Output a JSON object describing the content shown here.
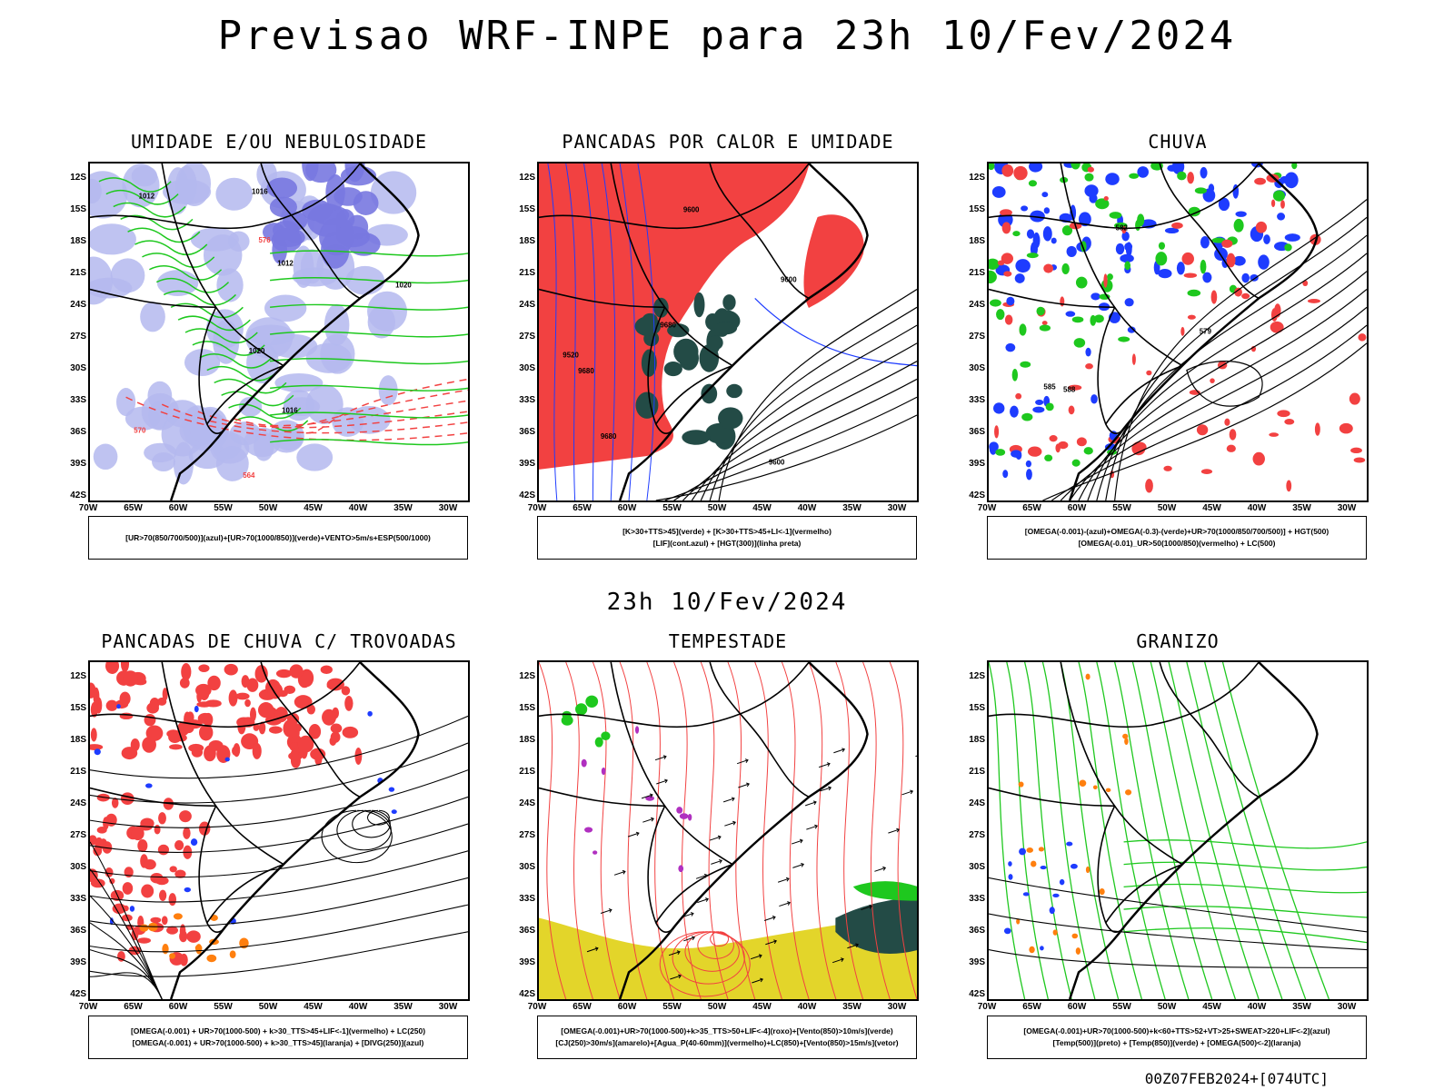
{
  "main_title": "Previsao WRF-INPE  para 23h 10/Fev/2024",
  "mid_title": "23h 10/Fev/2024",
  "footer": "00Z07FEB2024+[074UTC]",
  "lat_labels": [
    "12S",
    "15S",
    "18S",
    "21S",
    "24S",
    "27S",
    "30S",
    "33S",
    "36S",
    "39S",
    "42S"
  ],
  "lon_labels": [
    "70W",
    "65W",
    "60W",
    "55W",
    "50W",
    "45W",
    "40W",
    "35W",
    "30W"
  ],
  "colors": {
    "red": "#f24141",
    "green": "#1ec81e",
    "blue": "#1e3cff",
    "lightblue": "#b4b8ee",
    "purple": "#7878e0",
    "orange": "#ff7f0e",
    "yellow": "#e3d52a",
    "darkgreen": "#234b46"
  },
  "panels": [
    {
      "title": "UMIDADE E/OU NEBULOSIDADE",
      "legend": [
        "[UR>70(850/700/500)](azul)+[UR>70(1000/850)](verde)+VENTO>5m/s+ESP(500/1000)"
      ],
      "contour_labels": [
        "1012",
        "1012",
        "1016",
        "1016",
        "1020",
        "1020",
        "570",
        "576",
        "564"
      ]
    },
    {
      "title": "PANCADAS POR CALOR E UMIDADE",
      "legend": [
        "[K>30+TTS>45](verde) + [K>30+TTS>45+LI<-1](vermelho)",
        "[LIF](cont.azul) + [HGT(300)](linha preta)"
      ],
      "contour_labels": [
        "9680",
        "9680",
        "9600",
        "9680",
        "9600",
        "9520",
        "9600"
      ]
    },
    {
      "title": "CHUVA",
      "legend": [
        "[OMEGA(-0.001)-(azul)+OMEGA(-0.3)-(verde)+UR>70(1000/850/700/500)] + HGT(500)",
        "[OMEGA(-0.01)_UR>50(1000/850)(vermelho) + LC(500)"
      ],
      "contour_labels": [
        "588",
        "585",
        "582",
        "579"
      ]
    },
    {
      "title": "PANCADAS DE CHUVA C/ TROVOADAS",
      "legend": [
        "[OMEGA(-0.001) + UR>70(1000-500) + k>30_TTS>45+LIF<-1](vermelho) + LC(250)",
        "[OMEGA(-0.001) + UR>70(1000-500) + k>30_TTS>45](laranja) + [DIVG(250)](azul)"
      ],
      "contour_labels": []
    },
    {
      "title": "TEMPESTADE",
      "legend": [
        "[OMEGA(-0.001)+UR>70(1000-500)+k>35_TTS>50+LIF<-4](roxo)+[Vento(850)>10m/s](verde)",
        "[CJ(250)>30m/s](amarelo)+[Agua_P(40-60mm)](vermelho)+LC(850)+[Vento(850)>15m/s](vetor)"
      ],
      "contour_labels": []
    },
    {
      "title": "GRANIZO",
      "legend": [
        "[OMEGA(-0.001)+UR>70(1000-500)+k<60+TTS>52+VT>25+SWEAT>220+LIF<-2](azul)",
        "[Temp(500)](preto) + [Temp(850)](verde) + [OMEGA(500)<-2](laranja)"
      ],
      "contour_labels": []
    }
  ]
}
